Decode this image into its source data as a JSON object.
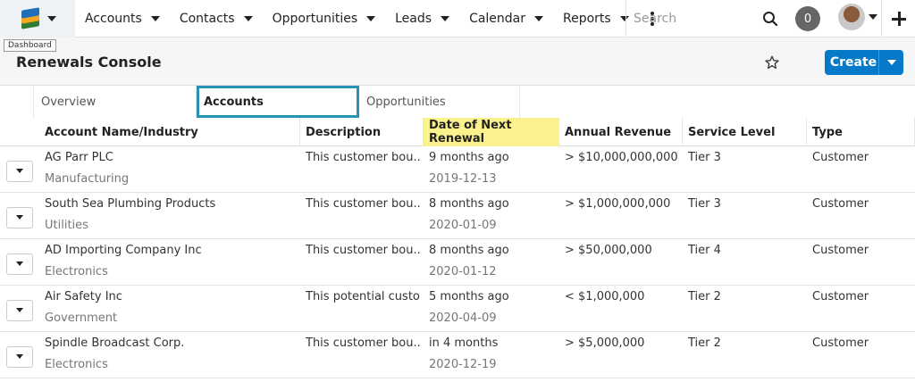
{
  "nav": {
    "items": [
      {
        "label": "Accounts"
      },
      {
        "label": "Contacts"
      },
      {
        "label": "Opportunities"
      },
      {
        "label": "Leads"
      },
      {
        "label": "Calendar"
      },
      {
        "label": "Reports"
      }
    ],
    "search_placeholder": "Search",
    "notification_count": "0",
    "tooltip": "Dashboard"
  },
  "header": {
    "title": "Renewals Console",
    "create_label": "Create"
  },
  "tabs": [
    {
      "label": "Overview",
      "active": false
    },
    {
      "label": "Accounts",
      "active": true
    },
    {
      "label": "Opportunities",
      "active": false
    }
  ],
  "table": {
    "columns": [
      "Account Name/Industry",
      "Description",
      "Date of Next Renewal",
      "Annual Revenue",
      "Service Level",
      "Type"
    ],
    "highlighted_column": "Date of Next Renewal",
    "rows": [
      {
        "name": "AG Parr PLC",
        "industry": "Manufacturing",
        "description": "This customer bou...",
        "renewal_relative": "9 months ago",
        "renewal_date": "2019-12-13",
        "revenue": "> $10,000,000,000",
        "service": "Tier 3",
        "type": "Customer"
      },
      {
        "name": "South Sea Plumbing Products",
        "industry": "Utilities",
        "description": "This customer bou...",
        "renewal_relative": "8 months ago",
        "renewal_date": "2020-01-09",
        "revenue": "> $1,000,000,000",
        "service": "Tier 3",
        "type": "Customer"
      },
      {
        "name": "AD Importing Company Inc",
        "industry": "Electronics",
        "description": "This customer bou...",
        "renewal_relative": "8 months ago",
        "renewal_date": "2020-01-12",
        "revenue": "> $50,000,000",
        "service": "Tier 4",
        "type": "Customer"
      },
      {
        "name": "Air Safety Inc",
        "industry": "Government",
        "description": "This potential custo...",
        "renewal_relative": "5 months ago",
        "renewal_date": "2020-04-09",
        "revenue": "< $1,000,000",
        "service": "Tier 2",
        "type": "Customer"
      },
      {
        "name": "Spindle Broadcast Corp.",
        "industry": "Electronics",
        "description": "This customer bou...",
        "renewal_relative": "in 4 months",
        "renewal_date": "2020-12-19",
        "revenue": "> $5,000,000",
        "service": "Tier 2",
        "type": "Customer"
      }
    ]
  },
  "colors": {
    "primary": "#0679c8",
    "tab_highlight": "#2a93b5",
    "column_highlight": "#fcf28d"
  }
}
